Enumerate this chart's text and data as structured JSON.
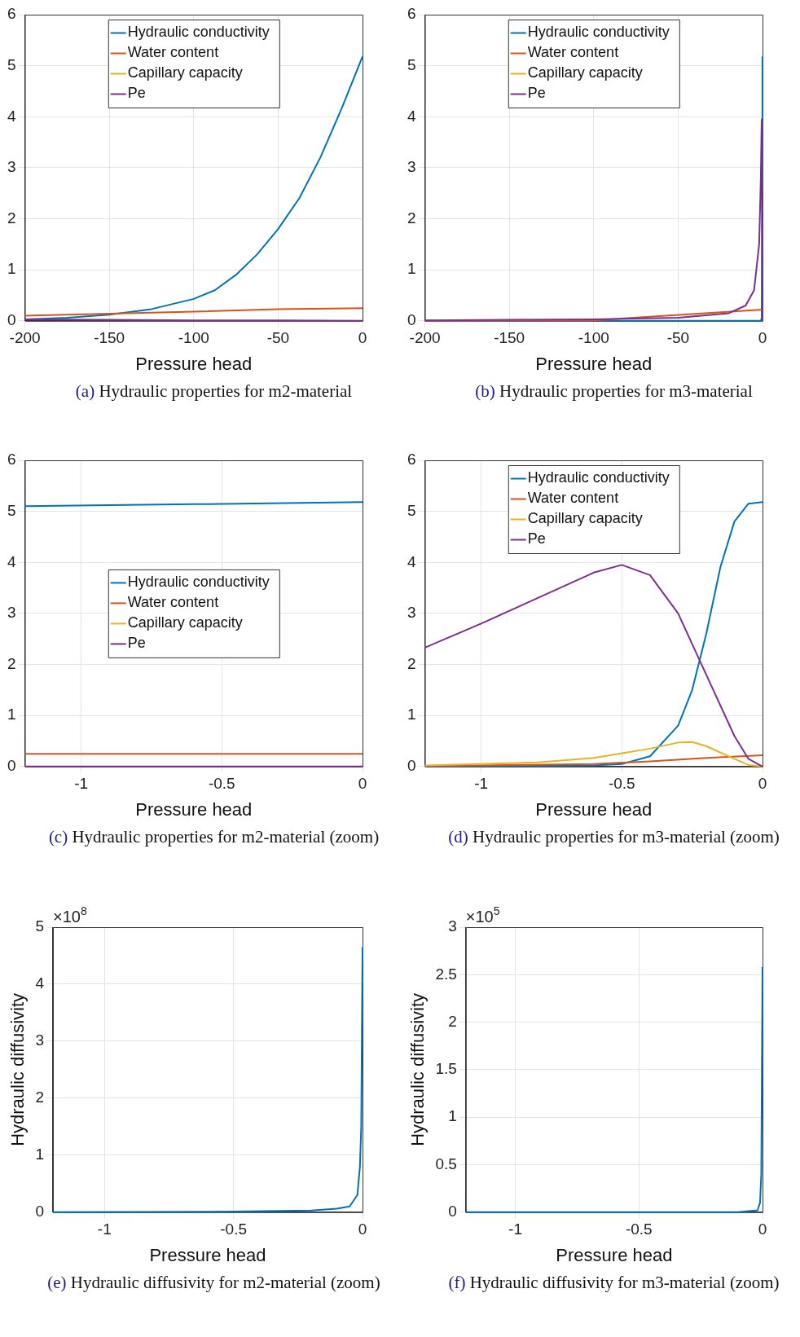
{
  "chart_data": [
    {
      "type": "line",
      "xlabel": "Pressure head",
      "xlim": [
        -200,
        0
      ],
      "xticks": [
        -200,
        -150,
        -100,
        -50,
        0
      ],
      "ylim": [
        0,
        6
      ],
      "yticks": [
        0,
        1,
        2,
        3,
        4,
        5,
        6
      ],
      "grid": true,
      "legend": "top",
      "annotations": [
        "(a) Hydraulic properties for m2-material"
      ],
      "series": [
        {
          "name": "Hydraulic conductivity",
          "color": "#0072bd",
          "x": [
            -200,
            -175,
            -150,
            -125,
            -100,
            -87.5,
            -75,
            -62.5,
            -50,
            -37.5,
            -25,
            -12.5,
            0
          ],
          "values": [
            0.03,
            0.06,
            0.12,
            0.23,
            0.43,
            0.6,
            0.9,
            1.3,
            1.8,
            2.4,
            3.2,
            4.15,
            5.18
          ]
        },
        {
          "name": "Water content",
          "color": "#d95319",
          "x": [
            -200,
            -150,
            -100,
            -50,
            0
          ],
          "values": [
            0.1,
            0.14,
            0.18,
            0.23,
            0.25
          ]
        },
        {
          "name": "Capillary capacity",
          "color": "#edb120",
          "values": [
            null
          ]
        },
        {
          "name": "Pe",
          "color": "#7e2f8e",
          "x": [
            -200,
            -150,
            -100,
            -50,
            0
          ],
          "values": [
            0.03,
            0.02,
            0.01,
            0.01,
            0
          ]
        }
      ]
    },
    {
      "type": "line",
      "xlabel": "Pressure head",
      "xlim": [
        -200,
        0
      ],
      "xticks": [
        -200,
        -150,
        -100,
        -50,
        0
      ],
      "ylim": [
        0,
        6
      ],
      "yticks": [
        0,
        1,
        2,
        3,
        4,
        5,
        6
      ],
      "grid": true,
      "legend": "top",
      "annotations": [
        "(b) Hydraulic properties for m3-material"
      ],
      "series": [
        {
          "name": "Hydraulic conductivity",
          "color": "#0072bd",
          "x": [
            -200,
            -1,
            -0.5,
            -0.2,
            -0.05,
            0
          ],
          "values": [
            0,
            0,
            0.05,
            2.6,
            5.15,
            5.18
          ]
        },
        {
          "name": "Water content",
          "color": "#d95319",
          "x": [
            -200,
            -100,
            0
          ],
          "values": [
            0,
            0.01,
            0.22
          ]
        },
        {
          "name": "Capillary capacity",
          "color": "#edb120",
          "values": [
            null
          ]
        },
        {
          "name": "Pe",
          "color": "#7e2f8e",
          "x": [
            -200,
            -150,
            -100,
            -50,
            -20,
            -10,
            -5,
            -2,
            -1,
            -0.5,
            -0.2,
            0
          ],
          "values": [
            0.01,
            0.02,
            0.03,
            0.06,
            0.15,
            0.3,
            0.6,
            1.5,
            2.8,
            3.95,
            1.8,
            0
          ]
        }
      ]
    },
    {
      "type": "line",
      "xlabel": "Pressure head",
      "xlim": [
        -1.2,
        0
      ],
      "xticks": [
        -1,
        -0.5,
        0
      ],
      "ylim": [
        0,
        6
      ],
      "yticks": [
        0,
        1,
        2,
        3,
        4,
        5,
        6
      ],
      "grid": true,
      "legend": "center",
      "annotations": [
        "(c) Hydraulic properties for m2-material (zoom)"
      ],
      "series": [
        {
          "name": "Hydraulic conductivity",
          "color": "#0072bd",
          "x": [
            -1.2,
            -0.6,
            0
          ],
          "values": [
            5.1,
            5.14,
            5.18
          ]
        },
        {
          "name": "Water content",
          "color": "#d95319",
          "x": [
            -1.2,
            0
          ],
          "values": [
            0.25,
            0.25
          ]
        },
        {
          "name": "Capillary capacity",
          "color": "#edb120",
          "values": [
            null
          ]
        },
        {
          "name": "Pe",
          "color": "#7e2f8e",
          "x": [
            -1.2,
            0
          ],
          "values": [
            0,
            0
          ]
        }
      ]
    },
    {
      "type": "line",
      "xlabel": "Pressure head",
      "xlim": [
        -1.2,
        0
      ],
      "xticks": [
        -1,
        -0.5,
        0
      ],
      "ylim": [
        0,
        6
      ],
      "yticks": [
        0,
        1,
        2,
        3,
        4,
        5,
        6
      ],
      "grid": true,
      "legend": "top",
      "annotations": [
        "(d) Hydraulic properties for m3-material (zoom)"
      ],
      "series": [
        {
          "name": "Hydraulic conductivity",
          "color": "#0072bd",
          "x": [
            -1.2,
            -0.6,
            -0.5,
            -0.4,
            -0.3,
            -0.25,
            -0.2,
            -0.15,
            -0.1,
            -0.05,
            0
          ],
          "values": [
            0,
            0.02,
            0.05,
            0.2,
            0.8,
            1.5,
            2.6,
            3.9,
            4.8,
            5.15,
            5.18
          ]
        },
        {
          "name": "Water content",
          "color": "#d95319",
          "x": [
            -1.2,
            -0.6,
            -0.4,
            -0.2,
            0
          ],
          "values": [
            0.01,
            0.05,
            0.1,
            0.17,
            0.22
          ]
        },
        {
          "name": "Capillary capacity",
          "color": "#edb120",
          "x": [
            -1.2,
            -0.8,
            -0.6,
            -0.4,
            -0.3,
            -0.25,
            -0.2,
            -0.1,
            -0.05,
            0
          ],
          "values": [
            0.02,
            0.08,
            0.17,
            0.35,
            0.47,
            0.48,
            0.4,
            0.15,
            0.03,
            0
          ]
        },
        {
          "name": "Pe",
          "color": "#7e2f8e",
          "x": [
            -1.2,
            -1,
            -0.8,
            -0.6,
            -0.5,
            -0.4,
            -0.3,
            -0.2,
            -0.1,
            -0.05,
            0
          ],
          "values": [
            2.33,
            2.8,
            3.3,
            3.8,
            3.95,
            3.75,
            3,
            1.8,
            0.6,
            0.15,
            0
          ]
        }
      ]
    },
    {
      "type": "line",
      "xlabel": "Pressure head",
      "ylabel": "Hydraulic diffusivity",
      "xlim": [
        -1.2,
        0
      ],
      "xticks": [
        -1,
        -0.5,
        0
      ],
      "ylim": [
        0,
        5
      ],
      "yticks": [
        0,
        1,
        2,
        3,
        4,
        5
      ],
      "grid": true,
      "annotations": [
        "×10$^{8}$",
        "(e) Hydraulic diffusivity for m2-material (zoom)"
      ],
      "series": [
        {
          "color": "#0072bd",
          "x": [
            -1.2,
            -0.5,
            -0.2,
            -0.1,
            -0.05,
            -0.02,
            -0.01,
            -0.005,
            0
          ],
          "values": [
            0,
            0.01,
            0.03,
            0.06,
            0.1,
            0.3,
            0.8,
            1.5,
            4.65
          ]
        }
      ]
    },
    {
      "type": "line",
      "xlabel": "Pressure head",
      "ylabel": "Hydraulic diffusivity",
      "xlim": [
        -1.2,
        0
      ],
      "xticks": [
        -1,
        -0.5,
        0
      ],
      "ylim": [
        0,
        3
      ],
      "yticks": [
        0,
        0.5,
        1,
        1.5,
        2,
        2.5,
        3
      ],
      "grid": true,
      "annotations": [
        "×10$^{5}$",
        "(f) Hydraulic diffusivity for m3-material (zoom)"
      ],
      "series": [
        {
          "color": "#0072bd",
          "x": [
            -1.2,
            -0.1,
            -0.02,
            -0.01,
            -0.005,
            0
          ],
          "values": [
            0,
            0,
            0.02,
            0.1,
            0.4,
            2.58
          ]
        }
      ]
    }
  ]
}
